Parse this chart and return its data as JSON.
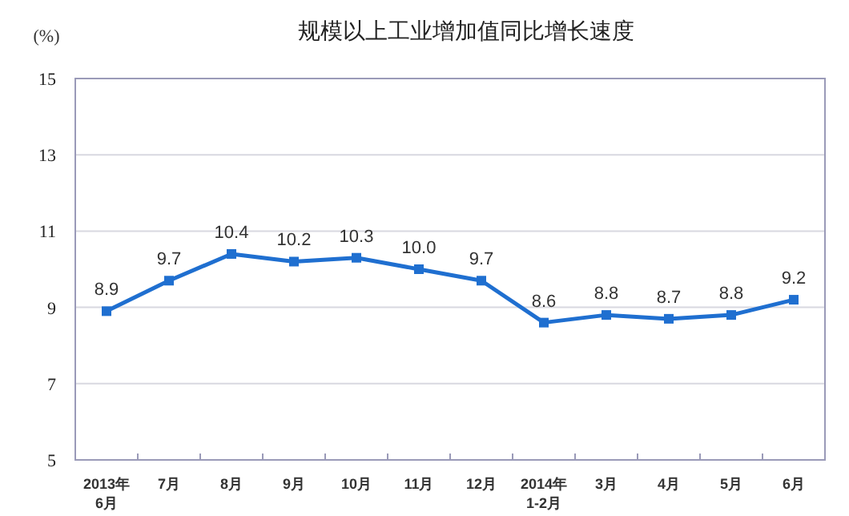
{
  "chart_data": {
    "type": "line",
    "title": "规模以上工业增加值同比增长速度",
    "ylabel": "(%)",
    "categories": [
      "2013年\n6月",
      "7月",
      "8月",
      "9月",
      "10月",
      "11月",
      "12月",
      "2014年\n1-2月",
      "3月",
      "4月",
      "5月",
      "6月"
    ],
    "series": [
      {
        "color": "#1f6fd0",
        "values": [
          8.9,
          9.7,
          10.4,
          10.2,
          10.3,
          10.0,
          9.7,
          8.6,
          8.8,
          8.7,
          8.8,
          9.2
        ],
        "value_labels": [
          "8.9",
          "9.7",
          "10.4",
          "10.2",
          "10.3",
          "10.0",
          "9.7",
          "8.6",
          "8.8",
          "8.7",
          "8.8",
          "9.2"
        ]
      }
    ],
    "ylim": [
      5,
      15
    ],
    "yticks": [
      5,
      7,
      9,
      11,
      13,
      15
    ],
    "grid": "y",
    "marker": "square",
    "line_style": "solid"
  }
}
